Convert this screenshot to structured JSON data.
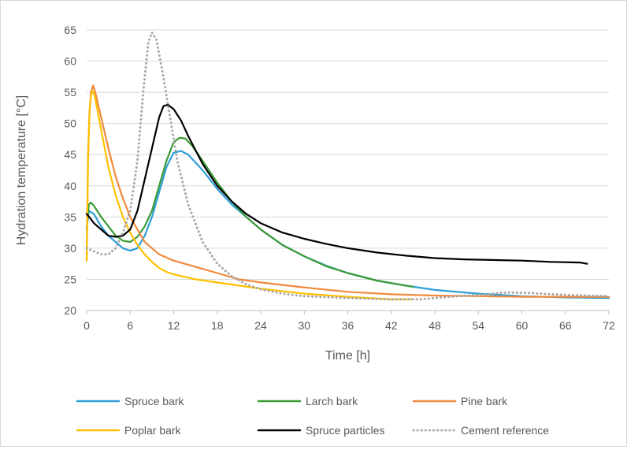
{
  "chart_data": {
    "type": "line",
    "title": "",
    "xlabel": "Time [h]",
    "ylabel": "Hydration temperature [°C]",
    "xlim": [
      0,
      72
    ],
    "ylim": [
      20,
      65
    ],
    "xticks": [
      0,
      6,
      12,
      18,
      24,
      30,
      36,
      42,
      48,
      54,
      60,
      66,
      72
    ],
    "yticks": [
      20,
      25,
      30,
      35,
      40,
      45,
      50,
      55,
      60,
      65
    ],
    "grid": "horizontal",
    "legend_position": "bottom",
    "series": [
      {
        "name": "Spruce bark",
        "color": "#2e9fd8",
        "dash": "solid",
        "points": [
          [
            0,
            33
          ],
          [
            0.3,
            36
          ],
          [
            1,
            35.5
          ],
          [
            2,
            33.5
          ],
          [
            3,
            32
          ],
          [
            4,
            31
          ],
          [
            5,
            30
          ],
          [
            6,
            29.6
          ],
          [
            7,
            30
          ],
          [
            8,
            32
          ],
          [
            9,
            35
          ],
          [
            10,
            39
          ],
          [
            11,
            43
          ],
          [
            12,
            45.3
          ],
          [
            13,
            45.6
          ],
          [
            14,
            45
          ],
          [
            16,
            42.5
          ],
          [
            18,
            39.5
          ],
          [
            20,
            37
          ],
          [
            22,
            35
          ],
          [
            24,
            33
          ],
          [
            27,
            30.5
          ],
          [
            30,
            28.7
          ],
          [
            33,
            27.2
          ],
          [
            36,
            26
          ],
          [
            40,
            24.8
          ],
          [
            44,
            24
          ],
          [
            48,
            23.3
          ],
          [
            54,
            22.7
          ],
          [
            60,
            22.3
          ],
          [
            66,
            22.1
          ],
          [
            72,
            22
          ]
        ]
      },
      {
        "name": "Larch bark",
        "color": "#3a9b35",
        "dash": "solid",
        "points": [
          [
            0,
            33
          ],
          [
            0.3,
            37
          ],
          [
            0.6,
            37.3
          ],
          [
            1,
            36.8
          ],
          [
            2,
            35
          ],
          [
            3,
            33.5
          ],
          [
            4,
            32
          ],
          [
            5,
            31.2
          ],
          [
            6,
            31
          ],
          [
            7,
            31.8
          ],
          [
            8,
            33.5
          ],
          [
            9,
            36
          ],
          [
            10,
            40
          ],
          [
            11,
            44
          ],
          [
            12,
            47
          ],
          [
            12.8,
            47.7
          ],
          [
            13.6,
            47.6
          ],
          [
            14.5,
            46.5
          ],
          [
            16,
            44
          ],
          [
            18,
            40.5
          ],
          [
            20,
            37.5
          ],
          [
            22,
            35
          ],
          [
            24,
            33
          ],
          [
            27,
            30.5
          ],
          [
            30,
            28.7
          ],
          [
            33,
            27.1
          ],
          [
            36,
            26
          ],
          [
            40,
            24.8
          ],
          [
            44,
            24
          ],
          [
            45,
            23.8
          ]
        ]
      },
      {
        "name": "Pine bark",
        "color": "#f28a3c",
        "dash": "solid",
        "points": [
          [
            0,
            28
          ],
          [
            0.2,
            45
          ],
          [
            0.4,
            52
          ],
          [
            0.6,
            55
          ],
          [
            0.9,
            56.1
          ],
          [
            1.2,
            55
          ],
          [
            2,
            51
          ],
          [
            3,
            46
          ],
          [
            4,
            41.5
          ],
          [
            5,
            38
          ],
          [
            6,
            35
          ],
          [
            7,
            33
          ],
          [
            8,
            31
          ],
          [
            9,
            30
          ],
          [
            10,
            29
          ],
          [
            12,
            28
          ],
          [
            15,
            27
          ],
          [
            18,
            26
          ],
          [
            21,
            25
          ],
          [
            24,
            24.5
          ],
          [
            30,
            23.7
          ],
          [
            36,
            23
          ],
          [
            42,
            22.6
          ],
          [
            48,
            22.4
          ],
          [
            54,
            22.3
          ],
          [
            60,
            22.2
          ],
          [
            66,
            22.2
          ],
          [
            72,
            22.2
          ]
        ]
      },
      {
        "name": "Poplar bark",
        "color": "#ffc000",
        "dash": "solid",
        "points": [
          [
            0,
            28
          ],
          [
            0.2,
            44
          ],
          [
            0.4,
            52
          ],
          [
            0.6,
            54.5
          ],
          [
            0.8,
            55.2
          ],
          [
            1.1,
            54.5
          ],
          [
            2,
            49
          ],
          [
            3,
            43
          ],
          [
            4,
            38.5
          ],
          [
            5,
            35
          ],
          [
            6,
            32.5
          ],
          [
            7,
            30.5
          ],
          [
            8,
            29
          ],
          [
            9,
            27.8
          ],
          [
            10,
            26.8
          ],
          [
            11,
            26.2
          ],
          [
            12,
            25.8
          ],
          [
            15,
            25
          ],
          [
            18,
            24.5
          ],
          [
            21,
            24
          ],
          [
            24,
            23.5
          ],
          [
            30,
            22.7
          ],
          [
            36,
            22.2
          ],
          [
            42,
            21.8
          ],
          [
            45,
            21.8
          ]
        ]
      },
      {
        "name": "Spruce particles",
        "color": "#000000",
        "dash": "solid",
        "points": [
          [
            0,
            35.5
          ],
          [
            0.5,
            34.8
          ],
          [
            1,
            34
          ],
          [
            2,
            33
          ],
          [
            3,
            32
          ],
          [
            4,
            31.8
          ],
          [
            5,
            32
          ],
          [
            6,
            33
          ],
          [
            7,
            36
          ],
          [
            8,
            41
          ],
          [
            9,
            46
          ],
          [
            10,
            51
          ],
          [
            10.6,
            52.8
          ],
          [
            11.2,
            53
          ],
          [
            12,
            52.3
          ],
          [
            13,
            50.5
          ],
          [
            14,
            48
          ],
          [
            16,
            43.5
          ],
          [
            18,
            40
          ],
          [
            20,
            37.5
          ],
          [
            22,
            35.5
          ],
          [
            24,
            34
          ],
          [
            27,
            32.5
          ],
          [
            30,
            31.5
          ],
          [
            33,
            30.7
          ],
          [
            36,
            30
          ],
          [
            40,
            29.3
          ],
          [
            44,
            28.8
          ],
          [
            48,
            28.4
          ],
          [
            52,
            28.2
          ],
          [
            56,
            28.1
          ],
          [
            60,
            28
          ],
          [
            64,
            27.8
          ],
          [
            68,
            27.7
          ],
          [
            69,
            27.5
          ]
        ]
      },
      {
        "name": "Cement reference",
        "color": "#a6a6a6",
        "dash": "dotted",
        "points": [
          [
            0,
            30
          ],
          [
            1,
            29.5
          ],
          [
            2,
            29
          ],
          [
            3,
            29
          ],
          [
            4,
            30
          ],
          [
            5,
            32.5
          ],
          [
            6,
            36
          ],
          [
            7,
            44
          ],
          [
            7.8,
            55
          ],
          [
            8.5,
            63
          ],
          [
            9,
            64.6
          ],
          [
            9.6,
            63.5
          ],
          [
            10.5,
            58
          ],
          [
            11.5,
            51
          ],
          [
            12.5,
            44
          ],
          [
            14,
            37
          ],
          [
            16,
            31
          ],
          [
            18,
            27.5
          ],
          [
            20,
            25.5
          ],
          [
            22,
            24.2
          ],
          [
            24,
            23.4
          ],
          [
            27,
            22.7
          ],
          [
            30,
            22.3
          ],
          [
            36,
            22
          ],
          [
            42,
            21.8
          ],
          [
            46,
            21.8
          ],
          [
            50,
            22.2
          ],
          [
            54,
            22.5
          ],
          [
            58,
            22.9
          ],
          [
            61,
            22.8
          ],
          [
            66,
            22.5
          ],
          [
            72,
            22.3
          ]
        ]
      }
    ]
  }
}
